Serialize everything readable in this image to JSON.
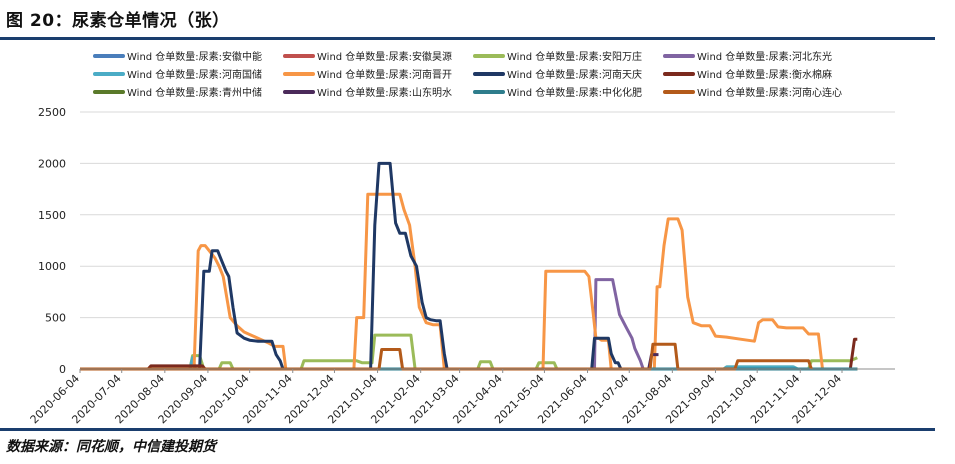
{
  "header": {
    "title": "图 20：尿素仓单情况（张）"
  },
  "footer": {
    "source": "数据来源：同花顺，中信建投期货"
  },
  "chart_data": {
    "type": "line",
    "ylim": [
      0,
      2500
    ],
    "yticks": [
      "0",
      "500",
      "1000",
      "1500",
      "2000",
      "2500"
    ],
    "xticks": [
      "2020-06-04",
      "2020-07-04",
      "2020-08-04",
      "2020-09-04",
      "2020-10-04",
      "2020-11-04",
      "2020-12-04",
      "2021-01-04",
      "2021-02-04",
      "2021-03-04",
      "2021-04-04",
      "2021-05-04",
      "2021-06-04",
      "2021-07-04",
      "2021-08-04",
      "2021-09-04",
      "2021-10-04",
      "2021-11-04",
      "2021-12-04"
    ],
    "grid": "horizontal",
    "legend_position": "top",
    "series": [
      {
        "name": "Wind 仓单数量:尿素:安徽中能",
        "color": "#4a7ebb",
        "points": [
          [
            "2020-06-04",
            0
          ],
          [
            "2021-12-15",
            0
          ]
        ]
      },
      {
        "name": "Wind 仓单数量:尿素:安徽昊源",
        "color": "#c0504d",
        "points": [
          [
            "2020-06-04",
            0
          ],
          [
            "2021-12-15",
            0
          ]
        ]
      },
      {
        "name": "Wind 仓单数量:尿素:安阳万庄",
        "color": "#9bbb59",
        "points": [
          [
            "2020-06-04",
            0
          ],
          [
            "2020-08-22",
            0
          ],
          [
            "2020-08-24",
            130
          ],
          [
            "2020-08-29",
            130
          ],
          [
            "2020-09-01",
            0
          ],
          [
            "2020-09-12",
            0
          ],
          [
            "2020-09-14",
            60
          ],
          [
            "2020-09-20",
            60
          ],
          [
            "2020-09-22",
            0
          ],
          [
            "2020-11-10",
            0
          ],
          [
            "2020-11-12",
            80
          ],
          [
            "2020-12-20",
            80
          ],
          [
            "2020-12-24",
            60
          ],
          [
            "2020-12-31",
            60
          ],
          [
            "2021-01-02",
            330
          ],
          [
            "2021-01-28",
            330
          ],
          [
            "2021-01-31",
            0
          ],
          [
            "2021-03-17",
            0
          ],
          [
            "2021-03-19",
            70
          ],
          [
            "2021-03-26",
            70
          ],
          [
            "2021-03-28",
            0
          ],
          [
            "2021-04-28",
            0
          ],
          [
            "2021-04-30",
            60
          ],
          [
            "2021-05-11",
            60
          ],
          [
            "2021-05-13",
            0
          ],
          [
            "2021-09-10",
            0
          ],
          [
            "2021-09-12",
            20
          ],
          [
            "2021-10-30",
            20
          ],
          [
            "2021-11-02",
            0
          ],
          [
            "2021-11-10",
            0
          ],
          [
            "2021-11-12",
            80
          ],
          [
            "2021-12-10",
            80
          ],
          [
            "2021-12-15",
            110
          ]
        ]
      },
      {
        "name": "Wind 仓单数量:尿素:河北东光",
        "color": "#8064a2",
        "points": [
          [
            "2021-06-09",
            0
          ],
          [
            "2021-06-10",
            870
          ],
          [
            "2021-06-22",
            870
          ],
          [
            "2021-06-27",
            530
          ],
          [
            "2021-07-02",
            400
          ],
          [
            "2021-07-06",
            300
          ],
          [
            "2021-07-08",
            200
          ],
          [
            "2021-07-12",
            80
          ],
          [
            "2021-07-14",
            0
          ]
        ]
      },
      {
        "name": "Wind 仓单数量:尿素:河南国储",
        "color": "#4bacc6",
        "points": [
          [
            "2020-06-04",
            0
          ],
          [
            "2020-08-22",
            0
          ],
          [
            "2020-08-24",
            110
          ],
          [
            "2020-08-26",
            0
          ],
          [
            "2021-09-10",
            0
          ],
          [
            "2021-09-12",
            20
          ],
          [
            "2021-10-30",
            20
          ],
          [
            "2021-11-02",
            0
          ],
          [
            "2021-12-15",
            0
          ]
        ]
      },
      {
        "name": "Wind 仓单数量:尿素:河南晋开",
        "color": "#f79646",
        "points": [
          [
            "2020-06-04",
            0
          ],
          [
            "2020-08-25",
            0
          ],
          [
            "2020-08-28",
            1150
          ],
          [
            "2020-08-30",
            1200
          ],
          [
            "2020-09-02",
            1200
          ],
          [
            "2020-09-05",
            1150
          ],
          [
            "2020-09-09",
            1080
          ],
          [
            "2020-09-12",
            1000
          ],
          [
            "2020-09-15",
            900
          ],
          [
            "2020-09-20",
            500
          ],
          [
            "2020-09-25",
            420
          ],
          [
            "2020-09-30",
            360
          ],
          [
            "2020-10-05",
            330
          ],
          [
            "2020-10-10",
            300
          ],
          [
            "2020-10-18",
            250
          ],
          [
            "2020-10-22",
            220
          ],
          [
            "2020-10-28",
            220
          ],
          [
            "2020-10-30",
            0
          ],
          [
            "2020-12-18",
            0
          ],
          [
            "2020-12-20",
            500
          ],
          [
            "2020-12-25",
            500
          ],
          [
            "2020-12-28",
            1700
          ],
          [
            "2021-01-20",
            1700
          ],
          [
            "2021-01-23",
            1550
          ],
          [
            "2021-01-27",
            1400
          ],
          [
            "2021-01-31",
            1000
          ],
          [
            "2021-02-03",
            600
          ],
          [
            "2021-02-08",
            450
          ],
          [
            "2021-02-13",
            430
          ],
          [
            "2021-02-18",
            430
          ],
          [
            "2021-02-21",
            0
          ],
          [
            "2021-05-03",
            0
          ],
          [
            "2021-05-05",
            950
          ],
          [
            "2021-06-02",
            950
          ],
          [
            "2021-06-05",
            900
          ],
          [
            "2021-06-08",
            550
          ],
          [
            "2021-06-10",
            300
          ],
          [
            "2021-06-12",
            300
          ],
          [
            "2021-06-14",
            280
          ],
          [
            "2021-06-19",
            280
          ],
          [
            "2021-06-21",
            0
          ],
          [
            "2021-07-22",
            0
          ],
          [
            "2021-07-24",
            800
          ],
          [
            "2021-07-26",
            800
          ],
          [
            "2021-07-29",
            1200
          ],
          [
            "2021-08-01",
            1460
          ],
          [
            "2021-08-08",
            1460
          ],
          [
            "2021-08-11",
            1350
          ],
          [
            "2021-08-15",
            700
          ],
          [
            "2021-08-19",
            450
          ],
          [
            "2021-08-25",
            420
          ],
          [
            "2021-08-31",
            420
          ],
          [
            "2021-09-04",
            320
          ],
          [
            "2021-09-12",
            310
          ],
          [
            "2021-09-22",
            290
          ],
          [
            "2021-10-02",
            270
          ],
          [
            "2021-10-05",
            450
          ],
          [
            "2021-10-08",
            480
          ],
          [
            "2021-10-15",
            480
          ],
          [
            "2021-10-19",
            410
          ],
          [
            "2021-10-25",
            400
          ],
          [
            "2021-11-01",
            400
          ],
          [
            "2021-11-06",
            400
          ],
          [
            "2021-11-10",
            340
          ],
          [
            "2021-11-17",
            340
          ],
          [
            "2021-11-20",
            0
          ],
          [
            "2021-12-15",
            0
          ]
        ]
      },
      {
        "name": "Wind 仓单数量:尿素:河南天庆",
        "color": "#1f3864",
        "points": [
          [
            "2020-06-04",
            0
          ],
          [
            "2020-08-29",
            0
          ],
          [
            "2020-09-01",
            950
          ],
          [
            "2020-09-05",
            950
          ],
          [
            "2020-09-07",
            1150
          ],
          [
            "2020-09-11",
            1150
          ],
          [
            "2020-09-14",
            1050
          ],
          [
            "2020-09-17",
            950
          ],
          [
            "2020-09-19",
            900
          ],
          [
            "2020-09-22",
            600
          ],
          [
            "2020-09-25",
            350
          ],
          [
            "2020-09-30",
            300
          ],
          [
            "2020-10-04",
            280
          ],
          [
            "2020-10-10",
            270
          ],
          [
            "2020-10-20",
            270
          ],
          [
            "2020-10-23",
            140
          ],
          [
            "2020-10-26",
            80
          ],
          [
            "2020-10-28",
            0
          ],
          [
            "2020-12-30",
            0
          ],
          [
            "2021-01-02",
            1400
          ],
          [
            "2021-01-05",
            2000
          ],
          [
            "2021-01-13",
            2000
          ],
          [
            "2021-01-17",
            1420
          ],
          [
            "2021-01-20",
            1320
          ],
          [
            "2021-01-24",
            1320
          ],
          [
            "2021-01-28",
            1100
          ],
          [
            "2021-02-01",
            1000
          ],
          [
            "2021-02-05",
            650
          ],
          [
            "2021-02-08",
            500
          ],
          [
            "2021-02-11",
            480
          ],
          [
            "2021-02-15",
            470
          ],
          [
            "2021-02-18",
            470
          ],
          [
            "2021-02-21",
            150
          ],
          [
            "2021-02-23",
            0
          ],
          [
            "2021-06-07",
            0
          ],
          [
            "2021-06-09",
            300
          ],
          [
            "2021-06-19",
            300
          ],
          [
            "2021-06-21",
            150
          ],
          [
            "2021-06-24",
            60
          ],
          [
            "2021-06-26",
            60
          ],
          [
            "2021-06-28",
            0
          ]
        ]
      },
      {
        "name": "Wind 仓单数量:尿素:衡水棉麻",
        "color": "#7b2a1e",
        "points": [
          [
            "2020-06-04",
            0
          ],
          [
            "2020-07-23",
            0
          ],
          [
            "2020-07-25",
            30
          ],
          [
            "2020-08-31",
            30
          ],
          [
            "2020-09-02",
            0
          ],
          [
            "2021-12-10",
            0
          ],
          [
            "2021-12-13",
            290
          ],
          [
            "2021-12-15",
            290
          ]
        ]
      },
      {
        "name": "Wind 仓单数量:尿素:青州中储",
        "color": "#5a7a2a",
        "points": [
          [
            "2020-06-04",
            0
          ],
          [
            "2021-12-15",
            0
          ]
        ]
      },
      {
        "name": "Wind 仓单数量:尿素:山东明水",
        "color": "#4b2a5a",
        "points": [
          [
            "2021-07-18",
            0
          ],
          [
            "2021-07-20",
            140
          ],
          [
            "2021-07-25",
            140
          ]
        ]
      },
      {
        "name": "Wind 仓单数量:尿素:中化化肥",
        "color": "#2e7d8c",
        "points": [
          [
            "2020-06-04",
            0
          ],
          [
            "2021-12-15",
            0
          ]
        ]
      },
      {
        "name": "Wind 仓单数量:尿素:河南心连心",
        "color": "#b35a1a",
        "points": [
          [
            "2020-06-04",
            0
          ],
          [
            "2021-01-05",
            0
          ],
          [
            "2021-01-07",
            190
          ],
          [
            "2021-01-20",
            190
          ],
          [
            "2021-01-22",
            0
          ],
          [
            "2021-07-19",
            0
          ],
          [
            "2021-07-21",
            240
          ],
          [
            "2021-08-06",
            240
          ],
          [
            "2021-08-08",
            0
          ],
          [
            "2021-09-18",
            0
          ],
          [
            "2021-09-20",
            80
          ],
          [
            "2021-11-10",
            80
          ],
          [
            "2021-11-12",
            0
          ]
        ]
      }
    ]
  }
}
